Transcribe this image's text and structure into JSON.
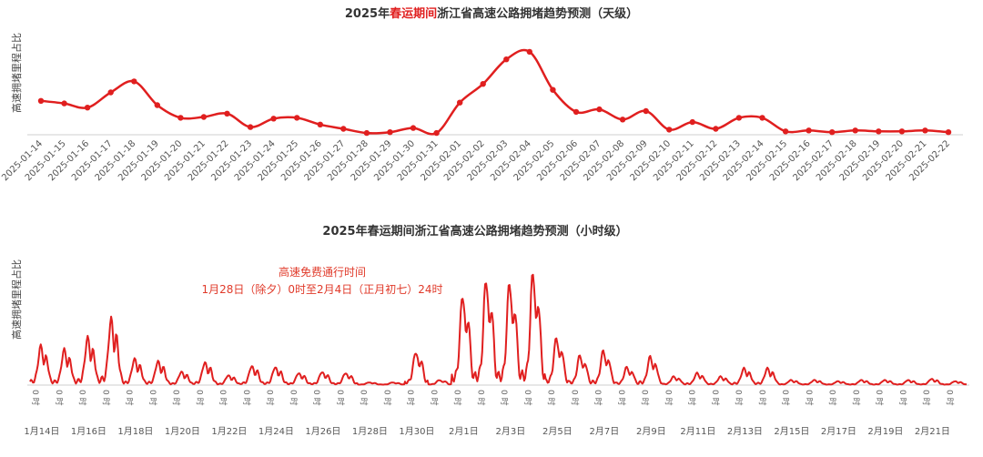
{
  "chart_data": [
    {
      "type": "line",
      "title": {
        "prefix": "2025年",
        "highlight": "春运期间",
        "suffix": "浙江省高速公路拥堵趋势预测（天级）"
      },
      "ylabel": "高速拥堵里程占比",
      "ylim": [
        0,
        1
      ],
      "grid": false,
      "line_color": "#e01f1f",
      "x": [
        "2025-01-14",
        "2025-01-15",
        "2025-01-16",
        "2025-01-17",
        "2025-01-18",
        "2025-01-19",
        "2025-01-20",
        "2025-01-21",
        "2025-01-22",
        "2025-01-23",
        "2025-01-24",
        "2025-01-25",
        "2025-01-26",
        "2025-01-27",
        "2025-01-28",
        "2025-01-29",
        "2025-01-30",
        "2025-01-31",
        "2025-02-01",
        "2025-02-02",
        "2025-02-03",
        "2025-02-04",
        "2025-02-05",
        "2025-02-06",
        "2025-02-07",
        "2025-02-08",
        "2025-02-09",
        "2025-02-10",
        "2025-02-11",
        "2025-02-12",
        "2025-02-13",
        "2025-02-14",
        "2025-02-15",
        "2025-02-16",
        "2025-02-17",
        "2025-02-18",
        "2025-02-19",
        "2025-02-20",
        "2025-02-21",
        "2025-02-22"
      ],
      "values": [
        0.4,
        0.37,
        0.32,
        0.5,
        0.63,
        0.35,
        0.2,
        0.21,
        0.25,
        0.09,
        0.19,
        0.2,
        0.12,
        0.07,
        0.02,
        0.03,
        0.08,
        0.02,
        0.38,
        0.6,
        0.89,
        0.98,
        0.53,
        0.27,
        0.3,
        0.18,
        0.28,
        0.06,
        0.15,
        0.07,
        0.2,
        0.2,
        0.04,
        0.05,
        0.03,
        0.05,
        0.04,
        0.04,
        0.05,
        0.03
      ]
    },
    {
      "type": "line",
      "title": "2025年春运期间浙江省高速公路拥堵趋势预测（小时级）",
      "ylabel": "高速拥堵里程占比",
      "ylim": [
        0,
        1
      ],
      "grid": false,
      "line_color": "#e01f1f",
      "hour_tick_label": "0 时",
      "x_start": "1月14日",
      "hours": 960,
      "x_tick_labels": [
        "1月14日",
        "1月16日",
        "1月18日",
        "1月20日",
        "1月22日",
        "1月24日",
        "1月26日",
        "1月28日",
        "1月30日",
        "2月1日",
        "2月3日",
        "2月5日",
        "2月7日",
        "2月9日",
        "2月11日",
        "2月13日",
        "2月15日",
        "2月17日",
        "2月19日",
        "2月21日"
      ],
      "daily_peaks": [
        0.33,
        0.3,
        0.4,
        0.56,
        0.22,
        0.2,
        0.11,
        0.19,
        0.08,
        0.16,
        0.15,
        0.1,
        0.11,
        0.1,
        0.02,
        0.02,
        0.28,
        0.04,
        0.77,
        0.9,
        0.88,
        0.96,
        0.4,
        0.25,
        0.29,
        0.15,
        0.24,
        0.07,
        0.1,
        0.07,
        0.14,
        0.14,
        0.04,
        0.04,
        0.03,
        0.04,
        0.04,
        0.04,
        0.05,
        0.03
      ],
      "annotation": {
        "line1": "高速免费通行时间",
        "line2": "1月28日（除夕）0时至2月4日（正月初七）24时"
      }
    }
  ]
}
